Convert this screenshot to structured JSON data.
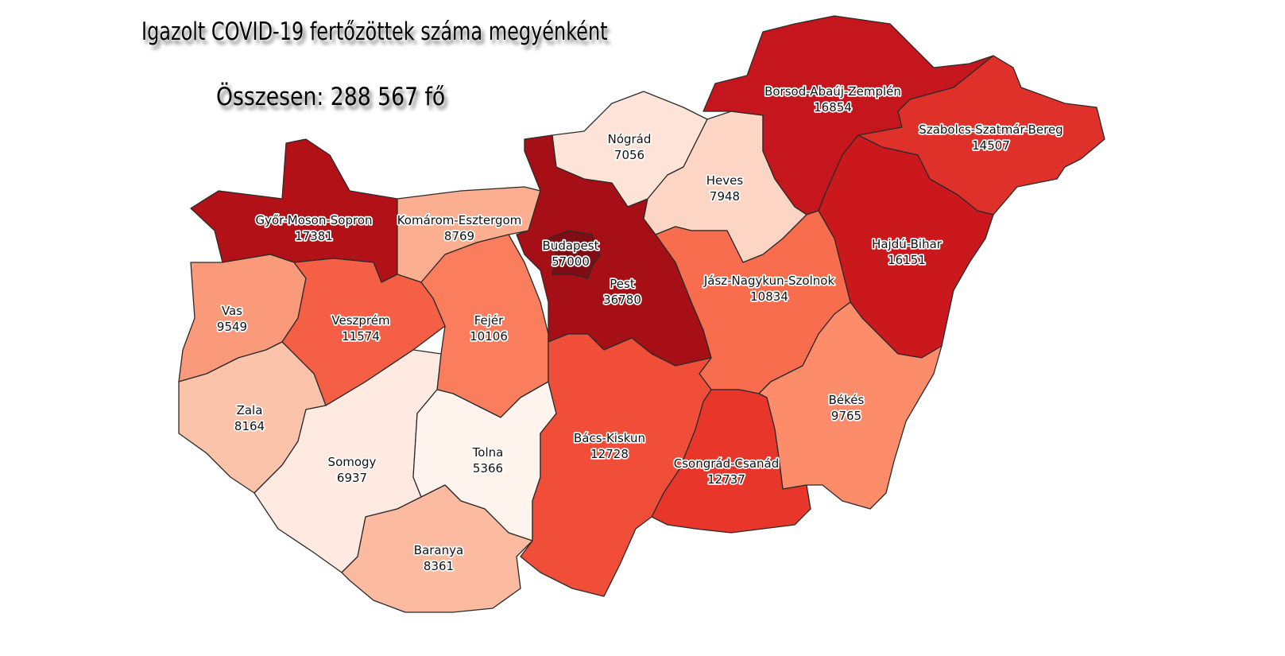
{
  "title": "Igazolt COVID-19 fertőzöttek száma megyénként",
  "total": "Összesen: 288 567 fő",
  "counties": [
    {
      "name": "Győr-Moson-Sopron",
      "value": "17381",
      "color": "#b11117"
    },
    {
      "name": "Komárom-Esztergom",
      "value": "8769",
      "color": "#fcae91"
    },
    {
      "name": "Vas",
      "value": "9549",
      "color": "#fb9a7a"
    },
    {
      "name": "Veszprém",
      "value": "11574",
      "color": "#f45f45"
    },
    {
      "name": "Fejér",
      "value": "10106",
      "color": "#fa7e5e"
    },
    {
      "name": "Zala",
      "value": "8164",
      "color": "#fcc3ab"
    },
    {
      "name": "Somogy",
      "value": "6937",
      "color": "#feeae0"
    },
    {
      "name": "Tolna",
      "value": "5366",
      "color": "#fff4ee"
    },
    {
      "name": "Baranya",
      "value": "8361",
      "color": "#fcbba1"
    },
    {
      "name": "Pest",
      "value": "36780",
      "color": "#a50f15"
    },
    {
      "name": "Budapest",
      "value": "57000",
      "color": "#7f0d13"
    },
    {
      "name": "Nógrád",
      "value": "7056",
      "color": "#fee4d8"
    },
    {
      "name": "Heves",
      "value": "7948",
      "color": "#fdd5c4"
    },
    {
      "name": "Borsod-Abaúj-Zemplén",
      "value": "16854",
      "color": "#c4161c"
    },
    {
      "name": "Szabolcs-Szatmár-Bereg",
      "value": "14507",
      "color": "#e0302a"
    },
    {
      "name": "Hajdú-Bihar",
      "value": "16151",
      "color": "#cb181d"
    },
    {
      "name": "Jász-Nagykun-Szolnok",
      "value": "10834",
      "color": "#f86d4e"
    },
    {
      "name": "Békés",
      "value": "9765",
      "color": "#fc8c6a"
    },
    {
      "name": "Csongrád-Csanád",
      "value": "12737",
      "color": "#e8362b"
    },
    {
      "name": "Bács-Kiskun",
      "value": "12728",
      "color": "#f14e3a"
    }
  ]
}
